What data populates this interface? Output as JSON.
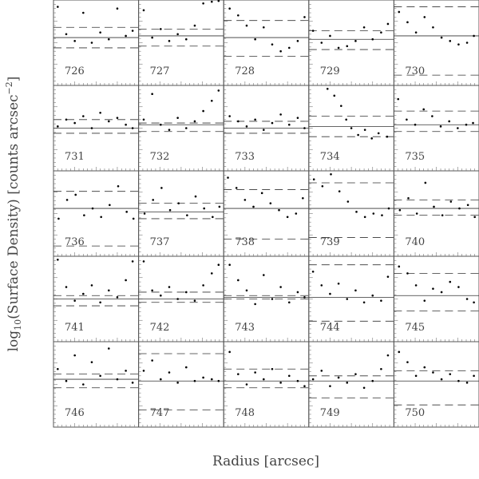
{
  "figure": {
    "xlabel": "Radius [arcsec]",
    "ylabel": {
      "text": "log",
      "sub": "10",
      "main": "(Surface Density) [counts arcsec",
      "sup": "−2",
      "end": "]"
    }
  },
  "chart_data": [
    {
      "type": "scatter",
      "label": "726",
      "x": [
        0.5,
        1.5,
        2.5,
        3.5,
        4.5,
        5.5,
        6.5,
        7.5,
        8.5,
        9.3
      ],
      "y": [
        9.2,
        6.0,
        5.2,
        8.5,
        5.0,
        6.2,
        5.4,
        9.0,
        5.8,
        6.4
      ],
      "xlim": [
        0,
        10
      ],
      "ylim": [
        0,
        10
      ],
      "hlines": [
        {
          "value": 5.6,
          "style": "solid"
        },
        {
          "value": 6.8,
          "style": "dashed"
        },
        {
          "value": 4.4,
          "style": "dashed"
        }
      ]
    },
    {
      "type": "scatter",
      "label": "727",
      "x": [
        0.6,
        1.6,
        2.6,
        3.6,
        4.6,
        5.6,
        6.6,
        7.6,
        8.6,
        9.4
      ],
      "y": [
        8.8,
        5.6,
        6.6,
        5.2,
        6.0,
        5.4,
        7.0,
        9.6,
        9.8,
        9.9
      ],
      "xlim": [
        0,
        10
      ],
      "ylim": [
        0,
        10
      ],
      "hlines": [
        {
          "value": 5.8,
          "style": "solid"
        },
        {
          "value": 6.6,
          "style": "dashed"
        },
        {
          "value": 4.6,
          "style": "dashed"
        }
      ]
    },
    {
      "type": "scatter",
      "label": "728",
      "x": [
        0.7,
        1.7,
        2.7,
        3.7,
        4.7,
        5.7,
        6.7,
        7.7,
        8.7,
        9.5
      ],
      "y": [
        9.0,
        8.2,
        7.0,
        5.4,
        6.8,
        4.8,
        4.0,
        4.4,
        5.2,
        8.0
      ],
      "xlim": [
        0,
        10
      ],
      "ylim": [
        0,
        10
      ],
      "hlines": [
        {
          "value": 5.6,
          "style": "solid"
        },
        {
          "value": 7.6,
          "style": "dashed"
        },
        {
          "value": 3.4,
          "style": "dashed"
        }
      ]
    },
    {
      "type": "scatter",
      "label": "729",
      "x": [
        0.5,
        1.5,
        2.5,
        3.5,
        4.5,
        5.5,
        6.5,
        7.5,
        8.5,
        9.3
      ],
      "y": [
        6.4,
        5.0,
        5.8,
        4.4,
        4.6,
        5.2,
        6.8,
        5.4,
        6.2,
        7.2
      ],
      "xlim": [
        0,
        10
      ],
      "ylim": [
        0,
        10
      ],
      "hlines": [
        {
          "value": 5.4,
          "style": "solid"
        },
        {
          "value": 6.4,
          "style": "dashed"
        },
        {
          "value": 4.2,
          "style": "dashed"
        }
      ]
    },
    {
      "type": "scatter",
      "label": "730",
      "x": [
        0.6,
        1.6,
        2.6,
        3.6,
        4.6,
        5.6,
        6.6,
        7.6,
        8.6,
        9.4
      ],
      "y": [
        8.6,
        7.4,
        6.2,
        8.0,
        6.8,
        5.6,
        5.2,
        4.8,
        5.0,
        5.8
      ],
      "xlim": [
        0,
        10
      ],
      "ylim": [
        0,
        10
      ],
      "hlines": [
        {
          "value": 5.8,
          "style": "solid"
        },
        {
          "value": 9.2,
          "style": "dashed"
        },
        {
          "value": 1.2,
          "style": "dashed"
        }
      ]
    },
    {
      "type": "scatter",
      "label": "731",
      "x": [
        0.5,
        1.5,
        2.5,
        3.5,
        4.5,
        5.5,
        6.5,
        7.5,
        8.5,
        9.3
      ],
      "y": [
        5.2,
        6.0,
        5.6,
        6.4,
        5.0,
        6.8,
        5.8,
        6.2,
        5.4,
        5.0
      ],
      "xlim": [
        0,
        10
      ],
      "ylim": [
        0,
        10
      ],
      "hlines": [
        {
          "value": 5.0,
          "style": "solid"
        },
        {
          "value": 6.0,
          "style": "dashed"
        },
        {
          "value": 4.4,
          "style": "dashed"
        }
      ]
    },
    {
      "type": "scatter",
      "label": "732",
      "x": [
        0.6,
        1.6,
        2.6,
        3.6,
        4.6,
        5.6,
        6.6,
        7.6,
        8.6,
        9.4
      ],
      "y": [
        6.0,
        9.0,
        5.4,
        4.8,
        6.2,
        5.0,
        5.8,
        7.0,
        8.2,
        9.4
      ],
      "xlim": [
        0,
        10
      ],
      "ylim": [
        0,
        10
      ],
      "hlines": [
        {
          "value": 5.4,
          "style": "solid"
        },
        {
          "value": 5.6,
          "style": "dashed"
        },
        {
          "value": 4.6,
          "style": "dashed"
        }
      ]
    },
    {
      "type": "scatter",
      "label": "733",
      "x": [
        0.7,
        1.7,
        2.7,
        3.7,
        4.7,
        5.7,
        6.7,
        7.7,
        8.7,
        9.5
      ],
      "y": [
        6.4,
        5.8,
        5.2,
        6.0,
        4.8,
        5.6,
        6.6,
        5.4,
        6.2,
        5.0
      ],
      "xlim": [
        0,
        10
      ],
      "ylim": [
        0,
        10
      ],
      "hlines": [
        {
          "value": 5.0,
          "style": "solid"
        },
        {
          "value": 5.8,
          "style": "dashed"
        },
        {
          "value": 4.4,
          "style": "dashed"
        }
      ]
    },
    {
      "type": "scatter",
      "label": "734",
      "x": [
        2.2,
        3.0,
        3.8,
        4.4,
        5.0,
        5.8,
        6.6,
        7.4,
        8.2,
        9.2
      ],
      "y": [
        9.6,
        8.8,
        7.6,
        6.0,
        5.0,
        4.2,
        4.8,
        3.8,
        4.4,
        4.0
      ],
      "xlim": [
        0,
        10
      ],
      "ylim": [
        0,
        10
      ],
      "hlines": [
        {
          "value": 5.2,
          "style": "solid"
        },
        {
          "value": 6.4,
          "style": "dashed"
        },
        {
          "value": 4.0,
          "style": "dashed"
        }
      ]
    },
    {
      "type": "scatter",
      "label": "735",
      "x": [
        0.5,
        1.5,
        2.5,
        3.5,
        4.5,
        5.5,
        6.5,
        7.5,
        8.5,
        9.3
      ],
      "y": [
        8.4,
        6.0,
        5.4,
        7.2,
        6.4,
        5.2,
        5.8,
        5.0,
        5.4,
        5.6
      ],
      "xlim": [
        0,
        10
      ],
      "ylim": [
        0,
        10
      ],
      "hlines": [
        {
          "value": 5.4,
          "style": "solid"
        },
        {
          "value": 7.0,
          "style": "dashed"
        },
        {
          "value": 4.6,
          "style": "dashed"
        }
      ]
    },
    {
      "type": "scatter",
      "label": "736",
      "x": [
        0.6,
        1.6,
        2.6,
        3.6,
        4.6,
        5.6,
        6.6,
        7.6,
        8.6,
        9.4
      ],
      "y": [
        4.4,
        6.6,
        7.2,
        4.8,
        5.6,
        4.6,
        6.0,
        8.2,
        5.2,
        4.4
      ],
      "xlim": [
        0,
        10
      ],
      "ylim": [
        0,
        10
      ],
      "hlines": [
        {
          "value": 5.6,
          "style": "solid"
        },
        {
          "value": 7.6,
          "style": "dashed"
        },
        {
          "value": 1.2,
          "style": "dashed"
        }
      ]
    },
    {
      "type": "scatter",
      "label": "737",
      "x": [
        0.7,
        1.7,
        2.7,
        3.7,
        4.7,
        5.7,
        6.7,
        7.7,
        8.7,
        9.5
      ],
      "y": [
        5.0,
        6.6,
        8.0,
        5.4,
        6.2,
        4.8,
        7.0,
        5.6,
        4.6,
        5.8
      ],
      "xlim": [
        0,
        10
      ],
      "ylim": [
        0,
        10
      ],
      "hlines": [
        {
          "value": 5.2,
          "style": "solid"
        },
        {
          "value": 6.2,
          "style": "dashed"
        },
        {
          "value": 4.4,
          "style": "dashed"
        }
      ]
    },
    {
      "type": "scatter",
      "label": "738",
      "x": [
        0.5,
        1.5,
        2.5,
        3.5,
        4.5,
        5.5,
        6.5,
        7.5,
        8.5,
        9.3
      ],
      "y": [
        9.2,
        8.0,
        6.6,
        5.8,
        7.4,
        6.2,
        5.4,
        4.6,
        5.0,
        6.8
      ],
      "xlim": [
        0,
        10
      ],
      "ylim": [
        0,
        10
      ],
      "hlines": [
        {
          "value": 5.6,
          "style": "solid"
        },
        {
          "value": 7.8,
          "style": "dashed"
        },
        {
          "value": 2.0,
          "style": "dashed"
        }
      ]
    },
    {
      "type": "scatter",
      "label": "739",
      "x": [
        0.6,
        1.6,
        2.6,
        3.6,
        4.6,
        5.6,
        6.6,
        7.6,
        8.6,
        9.4
      ],
      "y": [
        9.0,
        8.2,
        9.6,
        7.6,
        6.4,
        5.2,
        4.6,
        5.0,
        4.8,
        5.6
      ],
      "xlim": [
        0,
        10
      ],
      "ylim": [
        0,
        10
      ],
      "hlines": [
        {
          "value": 5.6,
          "style": "solid"
        },
        {
          "value": 8.6,
          "style": "dashed"
        },
        {
          "value": 2.2,
          "style": "dashed"
        }
      ]
    },
    {
      "type": "scatter",
      "label": "740",
      "x": [
        0.7,
        1.7,
        2.7,
        3.7,
        4.7,
        5.7,
        6.7,
        7.7,
        8.7,
        9.5
      ],
      "y": [
        5.4,
        6.8,
        5.0,
        8.6,
        5.8,
        4.8,
        6.4,
        5.6,
        6.0,
        4.6
      ],
      "xlim": [
        0,
        10
      ],
      "ylim": [
        0,
        10
      ],
      "hlines": [
        {
          "value": 5.6,
          "style": "solid"
        },
        {
          "value": 6.6,
          "style": "dashed"
        },
        {
          "value": 4.8,
          "style": "dashed"
        }
      ]
    },
    {
      "type": "scatter",
      "label": "741",
      "x": [
        0.5,
        1.5,
        2.5,
        3.5,
        4.5,
        5.5,
        6.5,
        7.5,
        8.5,
        9.3
      ],
      "y": [
        9.6,
        6.4,
        4.8,
        5.6,
        6.6,
        4.6,
        6.0,
        5.2,
        7.2,
        9.4
      ],
      "xlim": [
        0,
        10
      ],
      "ylim": [
        0,
        10
      ],
      "hlines": [
        {
          "value": 5.0,
          "style": "solid"
        },
        {
          "value": 5.4,
          "style": "dashed"
        },
        {
          "value": 4.2,
          "style": "dashed"
        }
      ]
    },
    {
      "type": "scatter",
      "label": "742",
      "x": [
        0.6,
        1.6,
        2.6,
        3.6,
        4.6,
        5.6,
        6.6,
        7.6,
        8.6,
        9.4
      ],
      "y": [
        9.4,
        6.0,
        5.4,
        6.4,
        5.0,
        5.8,
        4.8,
        6.6,
        8.0,
        9.0
      ],
      "xlim": [
        0,
        10
      ],
      "ylim": [
        0,
        10
      ],
      "hlines": [
        {
          "value": 5.0,
          "style": "solid"
        },
        {
          "value": 5.8,
          "style": "dashed"
        },
        {
          "value": 4.6,
          "style": "dashed"
        }
      ]
    },
    {
      "type": "scatter",
      "label": "743",
      "x": [
        0.7,
        1.7,
        2.7,
        3.7,
        4.7,
        5.7,
        6.7,
        7.7,
        8.7,
        9.5
      ],
      "y": [
        9.0,
        7.2,
        6.0,
        4.4,
        7.8,
        5.0,
        6.4,
        4.6,
        5.8,
        5.2
      ],
      "xlim": [
        0,
        10
      ],
      "ylim": [
        0,
        10
      ],
      "hlines": [
        {
          "value": 5.2,
          "style": "solid"
        },
        {
          "value": 5.4,
          "style": "dashed"
        },
        {
          "value": 5.0,
          "style": "dashed"
        }
      ]
    },
    {
      "type": "scatter",
      "label": "744",
      "x": [
        0.5,
        1.5,
        2.5,
        3.5,
        4.5,
        5.5,
        6.5,
        7.5,
        8.5,
        9.3
      ],
      "y": [
        8.2,
        6.6,
        5.6,
        6.8,
        5.0,
        6.0,
        4.6,
        5.4,
        4.8,
        7.6
      ],
      "xlim": [
        0,
        10
      ],
      "ylim": [
        0,
        10
      ],
      "hlines": [
        {
          "value": 5.2,
          "style": "solid"
        },
        {
          "value": 9.0,
          "style": "dashed"
        },
        {
          "value": 2.4,
          "style": "dashed"
        }
      ]
    },
    {
      "type": "scatter",
      "label": "745",
      "x": [
        0.6,
        1.6,
        2.6,
        3.6,
        4.6,
        5.6,
        6.6,
        7.6,
        8.6,
        9.4
      ],
      "y": [
        8.8,
        8.0,
        6.6,
        4.8,
        6.2,
        5.8,
        7.0,
        6.4,
        5.0,
        4.6
      ],
      "xlim": [
        0,
        10
      ],
      "ylim": [
        0,
        10
      ],
      "hlines": [
        {
          "value": 5.4,
          "style": "solid"
        },
        {
          "value": 8.0,
          "style": "dashed"
        },
        {
          "value": 3.6,
          "style": "dashed"
        }
      ]
    },
    {
      "type": "scatter",
      "label": "746",
      "x": [
        0.5,
        1.5,
        2.5,
        3.5,
        4.5,
        5.5,
        6.5,
        7.5,
        8.5,
        9.3
      ],
      "y": [
        6.8,
        5.4,
        8.4,
        5.0,
        7.6,
        6.0,
        9.2,
        5.6,
        6.6,
        5.2
      ],
      "xlim": [
        0,
        10
      ],
      "ylim": [
        0,
        10
      ],
      "hlines": [
        {
          "value": 5.6,
          "style": "solid"
        },
        {
          "value": 6.2,
          "style": "dashed"
        },
        {
          "value": 4.6,
          "style": "dashed"
        }
      ]
    },
    {
      "type": "scatter",
      "label": "747",
      "x": [
        0.6,
        1.6,
        2.6,
        3.6,
        4.6,
        5.6,
        6.6,
        7.6,
        8.6,
        9.4
      ],
      "y": [
        6.6,
        7.8,
        5.6,
        6.4,
        5.2,
        7.0,
        5.4,
        5.8,
        5.6,
        5.4
      ],
      "xlim": [
        0,
        10
      ],
      "ylim": [
        0,
        10
      ],
      "hlines": [
        {
          "value": 5.4,
          "style": "solid"
        },
        {
          "value": 8.6,
          "style": "dashed"
        },
        {
          "value": 2.0,
          "style": "dashed"
        }
      ]
    },
    {
      "type": "scatter",
      "label": "748",
      "x": [
        0.7,
        1.7,
        2.7,
        3.7,
        4.7,
        5.7,
        6.7,
        7.7,
        8.7,
        9.5
      ],
      "y": [
        8.8,
        6.2,
        5.0,
        6.4,
        5.6,
        6.8,
        5.2,
        6.0,
        5.4,
        4.8
      ],
      "xlim": [
        0,
        10
      ],
      "ylim": [
        0,
        10
      ],
      "hlines": [
        {
          "value": 5.4,
          "style": "solid"
        },
        {
          "value": 6.8,
          "style": "dashed"
        },
        {
          "value": 4.6,
          "style": "dashed"
        }
      ]
    },
    {
      "type": "scatter",
      "label": "749",
      "x": [
        0.5,
        1.5,
        2.5,
        3.5,
        4.5,
        5.5,
        6.5,
        7.5,
        8.5,
        9.3
      ],
      "y": [
        5.6,
        6.6,
        4.8,
        5.8,
        5.2,
        6.2,
        4.6,
        5.4,
        6.8,
        8.4
      ],
      "xlim": [
        0,
        10
      ],
      "ylim": [
        0,
        10
      ],
      "hlines": [
        {
          "value": 5.4,
          "style": "solid"
        },
        {
          "value": 6.0,
          "style": "dashed"
        },
        {
          "value": 3.4,
          "style": "dashed"
        }
      ]
    },
    {
      "type": "scatter",
      "label": "750",
      "x": [
        0.6,
        1.6,
        2.6,
        3.6,
        4.6,
        5.6,
        6.6,
        7.6,
        8.6,
        9.4
      ],
      "y": [
        8.8,
        7.6,
        6.0,
        7.0,
        6.4,
        5.6,
        6.2,
        5.4,
        5.2,
        6.0
      ],
      "xlim": [
        0,
        10
      ],
      "ylim": [
        0,
        10
      ],
      "hlines": [
        {
          "value": 5.4,
          "style": "solid"
        },
        {
          "value": 6.6,
          "style": "dashed"
        },
        {
          "value": 2.6,
          "style": "dashed"
        }
      ]
    }
  ]
}
